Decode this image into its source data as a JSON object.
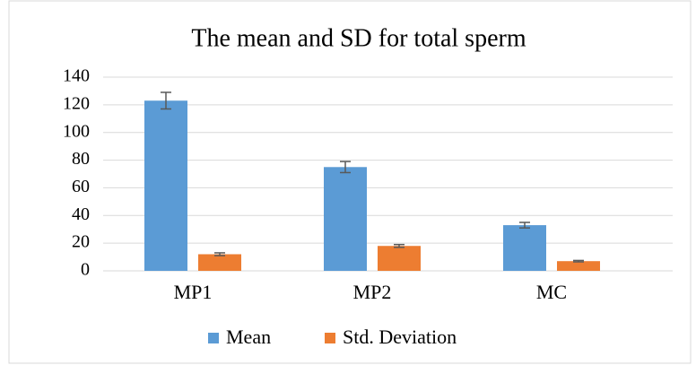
{
  "chart_data": {
    "type": "bar",
    "title": "The mean and SD for total sperm",
    "categories": [
      "MP1",
      "MP2",
      "MC"
    ],
    "series": [
      {
        "name": "Mean",
        "color": "#5b9bd5",
        "values": [
          123,
          75,
          33
        ],
        "errors": [
          6,
          4,
          2
        ]
      },
      {
        "name": "Std. Deviation",
        "color": "#ed7d31",
        "values": [
          12,
          18,
          7
        ],
        "errors": [
          1,
          1,
          0.5
        ]
      }
    ],
    "ylim": [
      0,
      140
    ],
    "yticks": [
      0,
      20,
      40,
      60,
      80,
      100,
      120,
      140
    ],
    "grid": true,
    "legend": "bottom"
  }
}
